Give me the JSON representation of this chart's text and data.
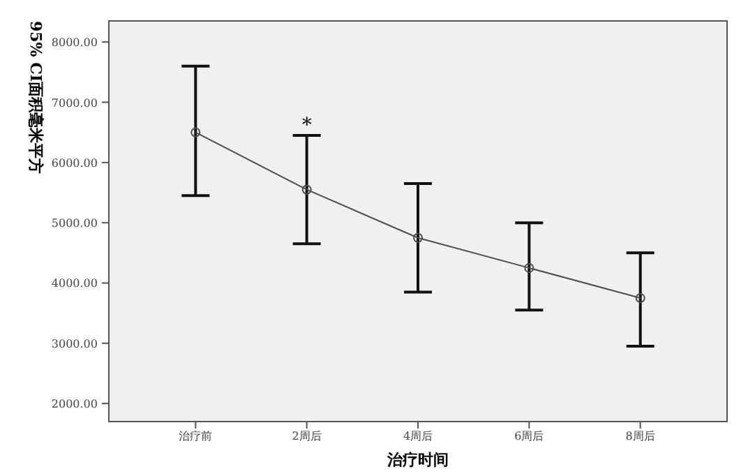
{
  "chart_data": {
    "type": "line",
    "xlabel": "治疗时间",
    "ylabel": "95% CI面积毫米平方",
    "categories": [
      "治疗前",
      "2周后",
      "4周后",
      "6周后",
      "8周后"
    ],
    "series": [
      {
        "color": "#4d4d4d",
        "values": [
          6500,
          5550,
          4750,
          4250,
          3750
        ],
        "errors": [
          [
            5450,
            7600
          ],
          [
            4650,
            6450
          ],
          [
            3850,
            5650
          ],
          [
            3550,
            5000
          ],
          [
            2950,
            4500
          ]
        ]
      }
    ],
    "ylim": [
      1700,
      8350
    ],
    "yticks": [
      {
        "value": 2000,
        "label": "2000.00"
      },
      {
        "value": 3000,
        "label": "3000.00"
      },
      {
        "value": 4000,
        "label": "4000.00"
      },
      {
        "value": 5000,
        "label": "5000.00"
      },
      {
        "value": 6000,
        "label": "6000.00"
      },
      {
        "value": 7000,
        "label": "7000.00"
      },
      {
        "value": 8000,
        "label": "8000.00"
      }
    ],
    "marker": "circle",
    "annotations": [
      {
        "text": "*",
        "x": "2周后",
        "y": 6450
      }
    ]
  }
}
